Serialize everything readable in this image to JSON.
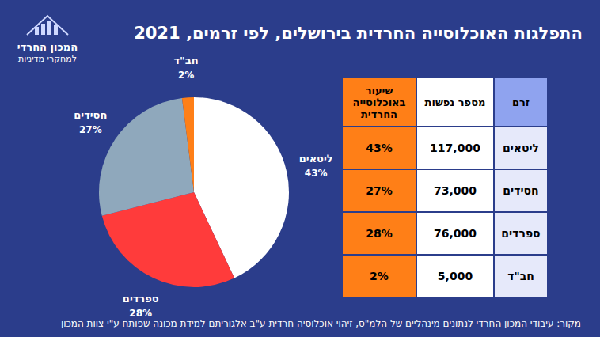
{
  "logo": {
    "line1": "המכון החרדי",
    "line2": "למחקרי מדיניות"
  },
  "chart_data": {
    "type": "pie",
    "title": "התפלגות האוכלוסייה החרדית בירושלים, לפי זרמים, 2021",
    "categories": [
      "ליטאים",
      "ספרדים",
      "חסידים",
      "חב\"ד"
    ],
    "values": [
      43,
      28,
      27,
      2
    ],
    "value_labels": [
      "43%",
      "28%",
      "27%",
      "2%"
    ],
    "colors": [
      "#ffffff",
      "#ff3b3b",
      "#8fa8bc",
      "#ff7f17"
    ],
    "data_labels": true
  },
  "table": {
    "header": [
      "זרם",
      "מספר  נפשות",
      "שיעור באוכלוסייה החרדית"
    ],
    "rows": [
      [
        "ליטאים",
        "117,000",
        "43%"
      ],
      [
        "חסידים",
        "73,000",
        "27%"
      ],
      [
        "ספרדים",
        "76,000",
        "28%"
      ],
      [
        "חב\"ד",
        "5,000",
        "2%"
      ]
    ]
  },
  "source": "מקור: עיבודי המכון החרדי לנתונים מינהליים של הלמ\"ס, זיהוי אוכלוסיה חרדית ע\"ב אלגוריתם למידת מכונה שפותח ע\"י צוות המכון"
}
